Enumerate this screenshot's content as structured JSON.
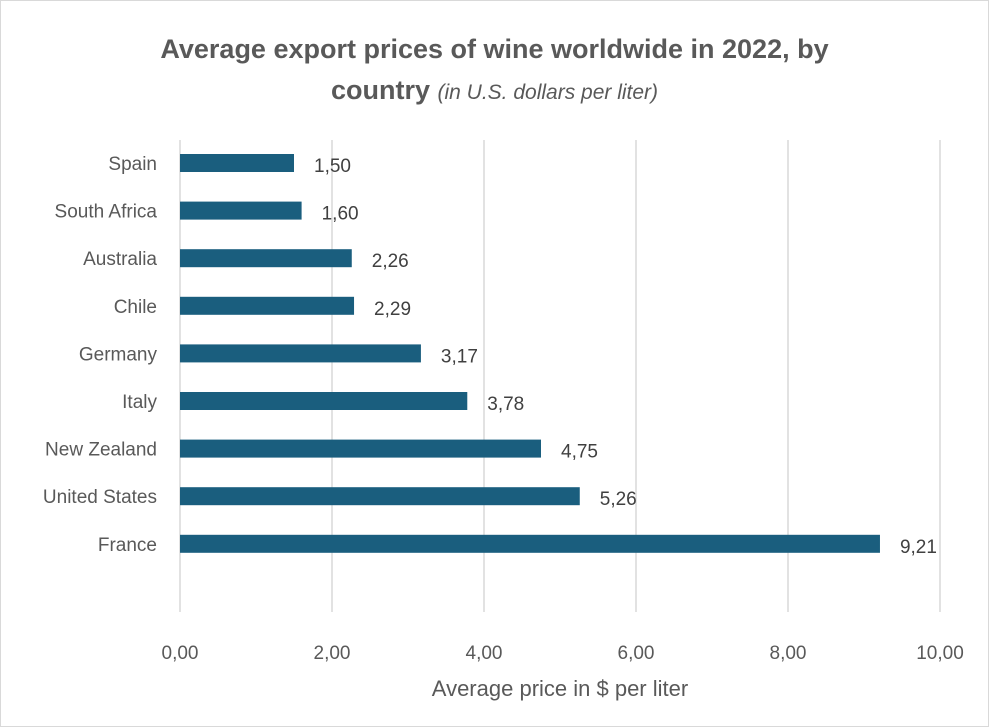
{
  "chart_data": {
    "type": "bar",
    "orientation": "horizontal",
    "title": "Average export prices of wine worldwide in 2022,  by",
    "title_line2": "country",
    "subtitle": "(in U.S. dollars per liter)",
    "xlabel": "Average price in $ per liter",
    "ylabel": "",
    "categories": [
      "Spain",
      "South Africa",
      "Australia",
      "Chile",
      "Germany",
      "Italy",
      "New Zealand",
      "United States",
      "France"
    ],
    "values": [
      1.5,
      1.6,
      2.26,
      2.29,
      3.17,
      3.78,
      4.75,
      5.26,
      9.21
    ],
    "value_labels": [
      "1,50",
      "1,60",
      "2,26",
      "2,29",
      "3,17",
      "3,78",
      "4,75",
      "5,26",
      "9,21"
    ],
    "xlim": [
      0,
      10
    ],
    "x_ticks": [
      0,
      2,
      4,
      6,
      8,
      10
    ],
    "x_tick_labels": [
      "0,00",
      "2,00",
      "4,00",
      "6,00",
      "8,00",
      "10,00"
    ],
    "grid": "vertical",
    "legend": "none",
    "bar_color": "#1a5e7e",
    "grid_color": "#d9d9d9"
  }
}
